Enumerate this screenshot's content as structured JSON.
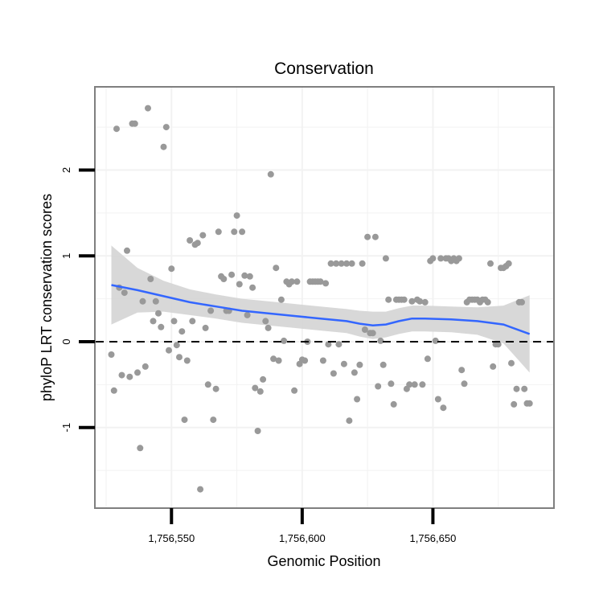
{
  "chart_data": {
    "type": "scatter",
    "title": "Conservation",
    "xlabel": "Genomic Position",
    "ylabel": "phyloP LRT conservation scores",
    "xlim": [
      1756521,
      1756696
    ],
    "ylim": [
      -1.93,
      2.96
    ],
    "x_ticks": [
      1756550,
      1756600,
      1756650
    ],
    "x_tick_labels": [
      "1,756,550",
      "1,756,600",
      "1,756,650"
    ],
    "y_ticks": [
      -1,
      0,
      1,
      2
    ],
    "y_tick_labels": [
      "-1",
      "0",
      "1",
      "2"
    ],
    "reference_line": {
      "y": 0,
      "style": "dashed"
    },
    "grid": true,
    "colors": {
      "points": "#999999",
      "smooth_line": "#3366ff",
      "confidence_band": "#d4d4d4",
      "grid": "#f2f2f2",
      "frame": "#7f7f7f"
    },
    "series": [
      {
        "name": "scores",
        "points": [
          [
            1756527,
            -0.15
          ],
          [
            1756528,
            -0.57
          ],
          [
            1756529,
            2.48
          ],
          [
            1756530,
            0.63
          ],
          [
            1756531,
            -0.39
          ],
          [
            1756532,
            0.57
          ],
          [
            1756533,
            1.06
          ],
          [
            1756534,
            -0.41
          ],
          [
            1756535,
            2.54
          ],
          [
            1756536,
            2.54
          ],
          [
            1756537,
            -0.36
          ],
          [
            1756538,
            -1.24
          ],
          [
            1756539,
            0.47
          ],
          [
            1756540,
            -0.29
          ],
          [
            1756541,
            2.72
          ],
          [
            1756542,
            0.73
          ],
          [
            1756543,
            0.24
          ],
          [
            1756544,
            0.47
          ],
          [
            1756545,
            0.33
          ],
          [
            1756546,
            0.17
          ],
          [
            1756547,
            2.27
          ],
          [
            1756548,
            2.5
          ],
          [
            1756549,
            -0.1
          ],
          [
            1756550,
            0.85
          ],
          [
            1756551,
            0.24
          ],
          [
            1756552,
            -0.04
          ],
          [
            1756553,
            -0.18
          ],
          [
            1756554,
            0.12
          ],
          [
            1756555,
            -0.91
          ],
          [
            1756556,
            -0.22
          ],
          [
            1756557,
            1.18
          ],
          [
            1756558,
            0.24
          ],
          [
            1756559,
            1.13
          ],
          [
            1756560,
            1.15
          ],
          [
            1756561,
            -1.72
          ],
          [
            1756562,
            1.24
          ],
          [
            1756563,
            0.16
          ],
          [
            1756564,
            -0.5
          ],
          [
            1756565,
            0.36
          ],
          [
            1756566,
            -0.91
          ],
          [
            1756567,
            -0.55
          ],
          [
            1756568,
            1.28
          ],
          [
            1756569,
            0.76
          ],
          [
            1756570,
            0.73
          ],
          [
            1756571,
            0.36
          ],
          [
            1756572,
            0.36
          ],
          [
            1756573,
            0.78
          ],
          [
            1756574,
            1.28
          ],
          [
            1756575,
            1.47
          ],
          [
            1756576,
            0.67
          ],
          [
            1756577,
            1.28
          ],
          [
            1756578,
            0.77
          ],
          [
            1756579,
            0.31
          ],
          [
            1756580,
            0.76
          ],
          [
            1756581,
            0.63
          ],
          [
            1756582,
            -0.54
          ],
          [
            1756583,
            -1.04
          ],
          [
            1756584,
            -0.58
          ],
          [
            1756585,
            -0.44
          ],
          [
            1756586,
            0.24
          ],
          [
            1756587,
            0.16
          ],
          [
            1756588,
            1.95
          ],
          [
            1756589,
            -0.2
          ],
          [
            1756590,
            0.86
          ],
          [
            1756591,
            -0.22
          ],
          [
            1756592,
            0.49
          ],
          [
            1756593,
            0.01
          ],
          [
            1756594,
            0.7
          ],
          [
            1756595,
            0.67
          ],
          [
            1756596,
            0.7
          ],
          [
            1756597,
            -0.57
          ],
          [
            1756598,
            0.7
          ],
          [
            1756599,
            -0.26
          ],
          [
            1756600,
            -0.21
          ],
          [
            1756601,
            -0.22
          ],
          [
            1756602,
            0.0
          ],
          [
            1756603,
            0.7
          ],
          [
            1756604,
            0.7
          ],
          [
            1756605,
            0.7
          ],
          [
            1756606,
            0.7
          ],
          [
            1756607,
            0.7
          ],
          [
            1756608,
            -0.22
          ],
          [
            1756609,
            0.68
          ],
          [
            1756610,
            -0.03
          ],
          [
            1756611,
            0.91
          ],
          [
            1756612,
            -0.37
          ],
          [
            1756613,
            0.91
          ],
          [
            1756614,
            -0.03
          ],
          [
            1756615,
            0.91
          ],
          [
            1756616,
            -0.26
          ],
          [
            1756617,
            0.91
          ],
          [
            1756618,
            -0.92
          ],
          [
            1756619,
            0.91
          ],
          [
            1756620,
            -0.36
          ],
          [
            1756621,
            -0.67
          ],
          [
            1756622,
            -0.27
          ],
          [
            1756623,
            0.91
          ],
          [
            1756624,
            0.14
          ],
          [
            1756625,
            1.22
          ],
          [
            1756626,
            0.1
          ],
          [
            1756627,
            0.1
          ],
          [
            1756628,
            1.22
          ],
          [
            1756629,
            -0.52
          ],
          [
            1756630,
            0.01
          ],
          [
            1756631,
            -0.27
          ],
          [
            1756632,
            0.97
          ],
          [
            1756633,
            0.49
          ],
          [
            1756634,
            -0.49
          ],
          [
            1756635,
            -0.73
          ],
          [
            1756636,
            0.49
          ],
          [
            1756637,
            0.49
          ],
          [
            1756638,
            0.49
          ],
          [
            1756639,
            0.49
          ],
          [
            1756640,
            -0.55
          ],
          [
            1756641,
            -0.5
          ],
          [
            1756642,
            0.47
          ],
          [
            1756643,
            -0.5
          ],
          [
            1756644,
            0.49
          ],
          [
            1756645,
            0.47
          ],
          [
            1756646,
            -0.5
          ],
          [
            1756647,
            0.46
          ],
          [
            1756648,
            -0.2
          ],
          [
            1756649,
            0.94
          ],
          [
            1756650,
            0.97
          ],
          [
            1756651,
            0.01
          ],
          [
            1756652,
            -0.67
          ],
          [
            1756653,
            0.97
          ],
          [
            1756654,
            -0.77
          ],
          [
            1756655,
            0.97
          ],
          [
            1756656,
            0.97
          ],
          [
            1756657,
            0.94
          ],
          [
            1756658,
            0.97
          ],
          [
            1756659,
            0.94
          ],
          [
            1756660,
            0.97
          ],
          [
            1756661,
            -0.33
          ],
          [
            1756662,
            -0.49
          ],
          [
            1756663,
            0.46
          ],
          [
            1756664,
            0.49
          ],
          [
            1756665,
            0.49
          ],
          [
            1756666,
            0.49
          ],
          [
            1756667,
            0.49
          ],
          [
            1756668,
            0.46
          ],
          [
            1756669,
            0.49
          ],
          [
            1756670,
            0.49
          ],
          [
            1756671,
            0.46
          ],
          [
            1756672,
            0.91
          ],
          [
            1756673,
            -0.29
          ],
          [
            1756674,
            -0.03
          ],
          [
            1756675,
            -0.03
          ],
          [
            1756676,
            0.86
          ],
          [
            1756677,
            0.86
          ],
          [
            1756678,
            0.88
          ],
          [
            1756679,
            0.91
          ],
          [
            1756680,
            -0.25
          ],
          [
            1756681,
            -0.73
          ],
          [
            1756682,
            -0.55
          ],
          [
            1756683,
            0.46
          ],
          [
            1756684,
            0.46
          ],
          [
            1756685,
            -0.55
          ],
          [
            1756686,
            -0.72
          ],
          [
            1756687,
            -0.72
          ]
        ]
      }
    ],
    "smooth": {
      "x": [
        1756527,
        1756537,
        1756547,
        1756557,
        1756567,
        1756577,
        1756587,
        1756597,
        1756607,
        1756617,
        1756622,
        1756627,
        1756632,
        1756637,
        1756642,
        1756647,
        1756657,
        1756667,
        1756677,
        1756687
      ],
      "y": [
        0.66,
        0.6,
        0.53,
        0.46,
        0.41,
        0.36,
        0.33,
        0.3,
        0.27,
        0.24,
        0.21,
        0.19,
        0.2,
        0.24,
        0.27,
        0.27,
        0.26,
        0.24,
        0.2,
        0.09
      ],
      "upper": [
        1.12,
        0.86,
        0.71,
        0.61,
        0.55,
        0.5,
        0.47,
        0.44,
        0.41,
        0.38,
        0.36,
        0.35,
        0.35,
        0.39,
        0.42,
        0.42,
        0.41,
        0.4,
        0.42,
        0.54
      ],
      "lower": [
        0.2,
        0.34,
        0.35,
        0.31,
        0.27,
        0.22,
        0.19,
        0.16,
        0.13,
        0.1,
        0.06,
        0.03,
        0.05,
        0.09,
        0.12,
        0.12,
        0.11,
        0.08,
        -0.02,
        -0.36
      ]
    }
  }
}
